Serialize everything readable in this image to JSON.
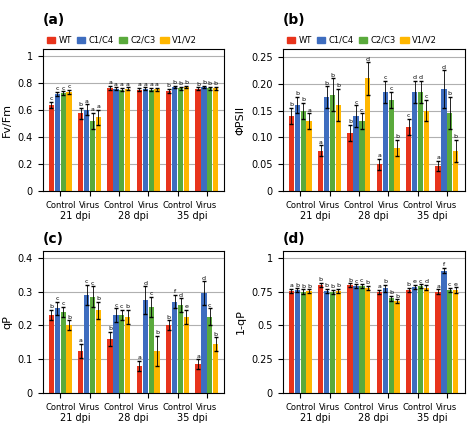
{
  "chart_data": [
    {
      "type": "bar",
      "title": "(a)",
      "ylabel": "Fv/Fm",
      "categories": [
        "Control",
        "Virus",
        "Control",
        "Virus",
        "Control",
        "Virus"
      ],
      "groups": [
        "21 dpi",
        "28 dpi",
        "35 dpi"
      ],
      "ylim": [
        0,
        1.05
      ],
      "yticks": [
        0,
        0.2,
        0.4,
        0.6,
        0.8,
        1
      ],
      "grid": true,
      "legend": "upper left",
      "series": [
        {
          "name": "WT",
          "color": "#e8341c",
          "values": [
            0.635,
            0.575,
            0.76,
            0.75,
            0.74,
            0.755
          ],
          "errors": [
            0.025,
            0.04,
            0.015,
            0.01,
            0.015,
            0.01
          ],
          "letters": [
            "c",
            "b",
            "a",
            "a",
            "b",
            "b"
          ]
        },
        {
          "name": "C1/C4",
          "color": "#3e6dbf",
          "values": [
            0.718,
            0.6,
            0.755,
            0.755,
            0.768,
            0.768
          ],
          "errors": [
            0.015,
            0.04,
            0.01,
            0.01,
            0.01,
            0.01
          ],
          "letters": [
            "c",
            "a",
            "a",
            "a",
            "b",
            "b"
          ]
        },
        {
          "name": "C2/C3",
          "color": "#5aaa3c",
          "values": [
            0.722,
            0.52,
            0.75,
            0.75,
            0.758,
            0.758
          ],
          "errors": [
            0.015,
            0.06,
            0.01,
            0.01,
            0.01,
            0.01
          ],
          "letters": [
            "c",
            "a",
            "a",
            "a",
            "b",
            "b"
          ]
        },
        {
          "name": "V1/V2",
          "color": "#ffb700",
          "values": [
            0.733,
            0.545,
            0.755,
            0.752,
            0.768,
            0.758
          ],
          "errors": [
            0.015,
            0.055,
            0.01,
            0.01,
            0.01,
            0.01
          ],
          "letters": [
            "c",
            "a",
            "a",
            "a",
            "b",
            "b"
          ]
        }
      ]
    },
    {
      "type": "bar",
      "title": "(b)",
      "ylabel": "ΦPSII",
      "categories": [
        "Control",
        "Virus",
        "Control",
        "Virus",
        "Control",
        "Virus"
      ],
      "groups": [
        "21 dpi",
        "28 dpi",
        "35 dpi"
      ],
      "ylim": [
        0,
        0.265
      ],
      "yticks": [
        0,
        0.05,
        {
          "value": 0.1,
          "label": "0.10"
        },
        0.15,
        {
          "value": 0.2,
          "label": "0.20"
        },
        0.25
      ],
      "grid": true,
      "legend": "upper left",
      "series": [
        {
          "name": "WT",
          "color": "#e8341c",
          "values": [
            0.14,
            0.075,
            0.108,
            0.05,
            0.12,
            0.047
          ],
          "errors": [
            0.015,
            0.01,
            0.015,
            0.01,
            0.015,
            0.01
          ],
          "letters": [
            "b",
            "a",
            "b",
            "a",
            "c",
            "a"
          ]
        },
        {
          "name": "C1/C4",
          "color": "#3e6dbf",
          "values": [
            0.16,
            0.175,
            0.14,
            0.185,
            0.185,
            0.19
          ],
          "errors": [
            0.015,
            0.02,
            0.02,
            0.02,
            0.02,
            0.035
          ],
          "letters": [
            "b",
            "b",
            "c",
            "c",
            "d",
            "d"
          ]
        },
        {
          "name": "C2/C3",
          "color": "#5aaa3c",
          "values": [
            0.15,
            0.18,
            0.13,
            0.17,
            0.185,
            0.145
          ],
          "errors": [
            0.015,
            0.03,
            0.015,
            0.015,
            0.02,
            0.03
          ],
          "letters": [
            "b",
            "b",
            "c",
            "c",
            "d",
            "b"
          ]
        },
        {
          "name": "V1/V2",
          "color": "#ffb700",
          "values": [
            0.13,
            0.16,
            0.21,
            0.08,
            0.15,
            0.075
          ],
          "errors": [
            0.015,
            0.03,
            0.03,
            0.015,
            0.02,
            0.02
          ],
          "letters": [
            "a",
            "b",
            "d",
            "b",
            "c",
            "b"
          ]
        }
      ]
    },
    {
      "type": "bar",
      "title": "(c)",
      "ylabel": "qP",
      "categories": [
        "Control",
        "Virus",
        "Control",
        "Virus",
        "Control",
        "Virus"
      ],
      "groups": [
        "21 dpi",
        "28 dpi",
        "35 dpi"
      ],
      "ylim": [
        0,
        0.42
      ],
      "yticks": [
        0,
        0.1,
        0.2,
        0.3,
        0.4
      ],
      "grid": true,
      "series": [
        {
          "name": "WT",
          "color": "#e8341c",
          "values": [
            0.23,
            0.125,
            0.16,
            0.08,
            0.2,
            0.085
          ],
          "errors": [
            0.015,
            0.02,
            0.02,
            0.015,
            0.015,
            0.015
          ],
          "letters": [
            "b",
            "a",
            "b",
            "a",
            "b",
            "a"
          ]
        },
        {
          "name": "C1/C4",
          "color": "#3e6dbf",
          "values": [
            0.25,
            0.29,
            0.23,
            0.275,
            0.27,
            0.295
          ],
          "errors": [
            0.02,
            0.03,
            0.02,
            0.04,
            0.02,
            0.035
          ],
          "letters": [
            "c",
            "c",
            "c",
            "d",
            "f",
            "d"
          ]
        },
        {
          "name": "C2/C3",
          "color": "#5aaa3c",
          "values": [
            0.24,
            0.285,
            0.23,
            0.255,
            0.26,
            0.225
          ],
          "errors": [
            0.015,
            0.03,
            0.015,
            0.03,
            0.02,
            0.025
          ],
          "letters": [
            "c",
            "c",
            "c",
            "c",
            "d",
            "c"
          ]
        },
        {
          "name": "V1/V2",
          "color": "#ffb700",
          "values": [
            0.2,
            0.245,
            0.225,
            0.125,
            0.225,
            0.145
          ],
          "errors": [
            0.015,
            0.025,
            0.02,
            0.045,
            0.02,
            0.02
          ],
          "letters": [
            "b",
            "b",
            "b",
            "b",
            "e",
            "b"
          ]
        }
      ]
    },
    {
      "type": "bar",
      "title": "(d)",
      "ylabel": "1-qP",
      "categories": [
        "Control",
        "Virus",
        "Control",
        "Virus",
        "Control",
        "Virus"
      ],
      "groups": [
        "21 dpi",
        "28 dpi",
        "35 dpi"
      ],
      "ylim": [
        0,
        1.05
      ],
      "yticks": [
        0,
        0.25,
        0.5,
        0.75,
        1
      ],
      "grid": true,
      "series": [
        {
          "name": "WT",
          "color": "#e8341c",
          "values": [
            0.755,
            0.8,
            0.795,
            0.745,
            0.76,
            0.75
          ],
          "errors": [
            0.015,
            0.015,
            0.015,
            0.015,
            0.015,
            0.015
          ],
          "letters": [
            "a",
            "b",
            "b",
            "a",
            "b",
            "a"
          ]
        },
        {
          "name": "C1/C4",
          "color": "#3e6dbf",
          "values": [
            0.758,
            0.755,
            0.788,
            0.775,
            0.782,
            0.905
          ],
          "errors": [
            0.015,
            0.015,
            0.015,
            0.025,
            0.015,
            0.02
          ],
          "letters": [
            "b",
            "b",
            "c",
            "b",
            "e",
            "f"
          ]
        },
        {
          "name": "C2/C3",
          "color": "#5aaa3c",
          "values": [
            0.75,
            0.748,
            0.79,
            0.7,
            0.788,
            0.76
          ],
          "errors": [
            0.015,
            0.015,
            0.015,
            0.02,
            0.015,
            0.015
          ],
          "letters": [
            "b",
            "b",
            "c",
            "b",
            "c",
            "c"
          ]
        },
        {
          "name": "V1/V2",
          "color": "#ffb700",
          "values": [
            0.752,
            0.755,
            0.778,
            0.678,
            0.778,
            0.76
          ],
          "errors": [
            0.015,
            0.015,
            0.015,
            0.015,
            0.02,
            0.02
          ],
          "letters": [
            "b",
            "b",
            "b",
            "b",
            "d",
            "e"
          ]
        }
      ]
    }
  ]
}
